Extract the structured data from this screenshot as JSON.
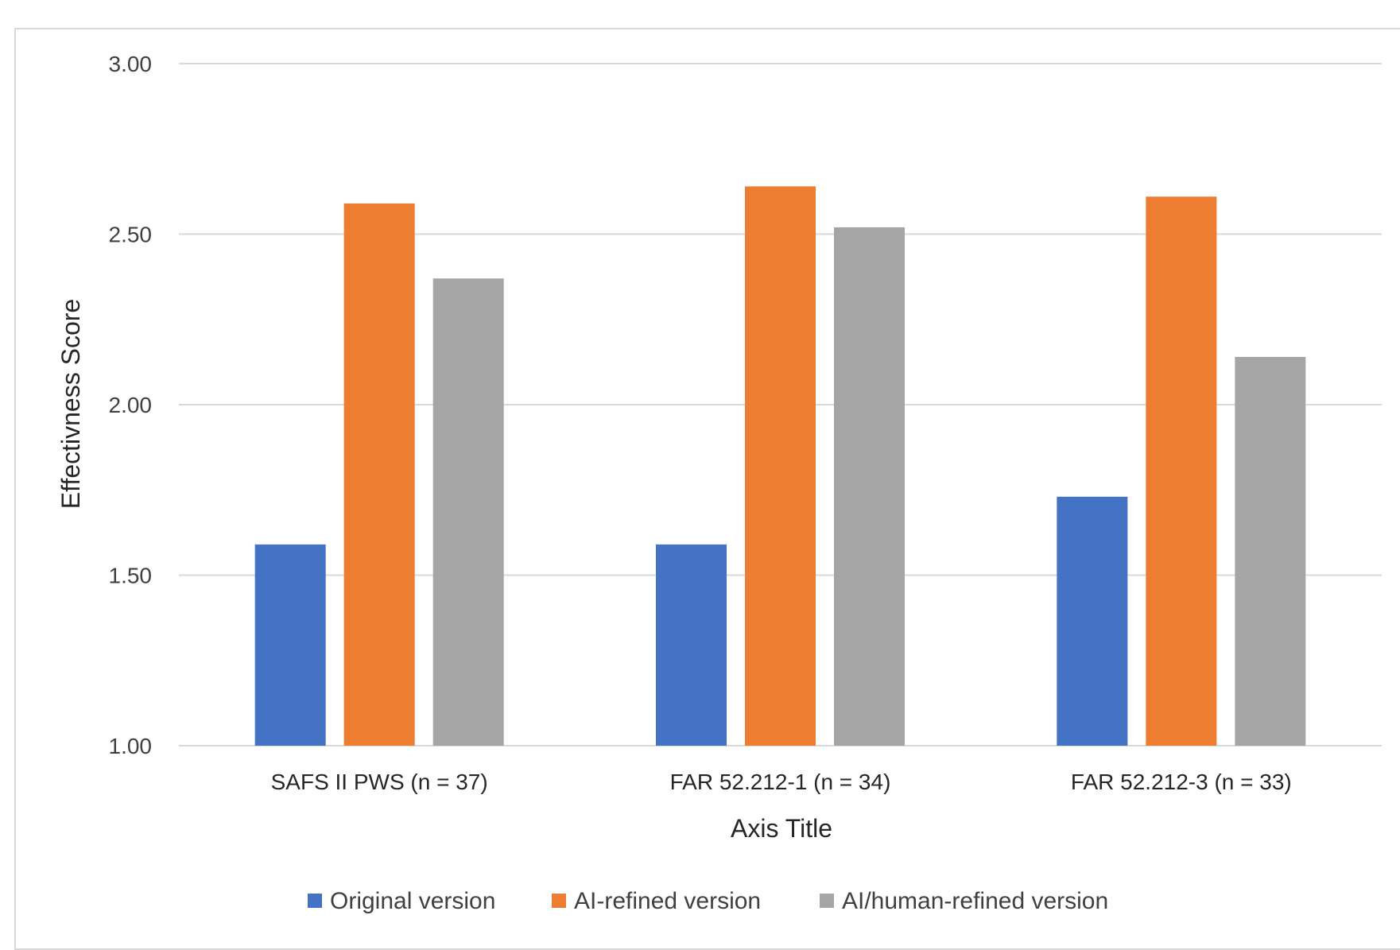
{
  "chart_data": {
    "type": "bar",
    "title": "",
    "xlabel": "Axis Title",
    "ylabel": "Effectivness Score",
    "ylim": [
      1.0,
      3.0
    ],
    "yticks": [
      "1.00",
      "1.50",
      "2.00",
      "2.50",
      "3.00"
    ],
    "yticks_values": [
      1.0,
      1.5,
      2.0,
      2.5,
      3.0
    ],
    "grid": true,
    "legend_position": "bottom",
    "categories": [
      "SAFS II PWS (n = 37)",
      "FAR 52.212-1 (n = 34)",
      "FAR 52.212-3 (n = 33)"
    ],
    "series": [
      {
        "name": "Original version",
        "color": "#4472c4",
        "values": [
          1.59,
          1.59,
          1.73
        ]
      },
      {
        "name": "AI-refined version",
        "color": "#ed7d31",
        "values": [
          2.59,
          2.64,
          2.61
        ]
      },
      {
        "name": "AI/human-refined version",
        "color": "#a5a5a5",
        "values": [
          2.37,
          2.52,
          2.14
        ]
      }
    ]
  }
}
